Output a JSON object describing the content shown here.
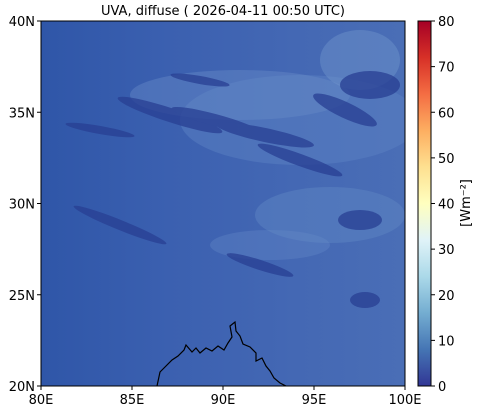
{
  "figure": {
    "title": "UVA, diffuse ( 2026-04-11 00:50 UTC)"
  },
  "map": {
    "lon_range": [
      80,
      100
    ],
    "lat_range": [
      20,
      40
    ],
    "x_ticks": [
      {
        "value": 80,
        "label": "80E"
      },
      {
        "value": 85,
        "label": "85E"
      },
      {
        "value": 90,
        "label": "90E"
      },
      {
        "value": 95,
        "label": "95E"
      },
      {
        "value": 100,
        "label": "100E"
      }
    ],
    "y_ticks": [
      {
        "value": 20,
        "label": "20N"
      },
      {
        "value": 25,
        "label": "25N"
      },
      {
        "value": 30,
        "label": "30N"
      },
      {
        "value": 35,
        "label": "35N"
      },
      {
        "value": 40,
        "label": "40N"
      }
    ],
    "background_color": "#3f5fae",
    "coastline_color": "#000000"
  },
  "colorbar": {
    "label": "[Wm⁻²]",
    "range": [
      0,
      80
    ],
    "ticks": [
      {
        "value": 0,
        "label": "0"
      },
      {
        "value": 10,
        "label": "10"
      },
      {
        "value": 20,
        "label": "20"
      },
      {
        "value": 30,
        "label": "30"
      },
      {
        "value": 40,
        "label": "40"
      },
      {
        "value": 50,
        "label": "50"
      },
      {
        "value": 60,
        "label": "60"
      },
      {
        "value": 70,
        "label": "70"
      },
      {
        "value": 80,
        "label": "80"
      }
    ],
    "colormap": "RdYlBu_r",
    "stops": [
      "#313695",
      "#4575b4",
      "#74add1",
      "#abd9e9",
      "#e0f3f8",
      "#ffffbf",
      "#fee090",
      "#fdae61",
      "#f46d43",
      "#d73027",
      "#a50026"
    ]
  }
}
